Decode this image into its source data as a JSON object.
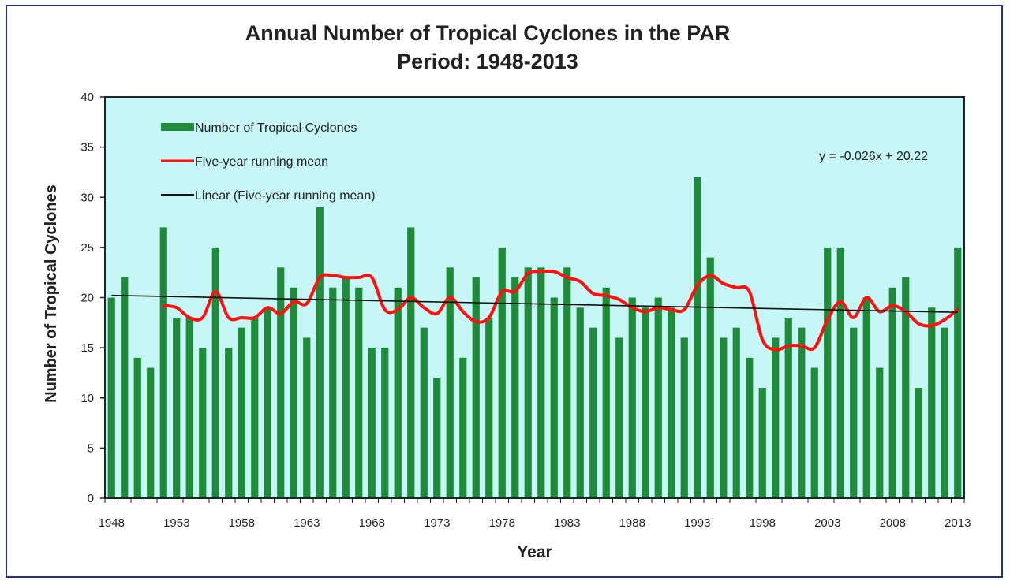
{
  "chart_data": {
    "type": "bar",
    "title": "Annual Number of Tropical Cyclones  in the PAR",
    "subtitle": "Period: 1948-2013",
    "xlabel": "Year",
    "ylabel": "Number of Tropical Cyclones",
    "ylim": [
      0,
      40
    ],
    "yticks": [
      0,
      5,
      10,
      15,
      20,
      25,
      30,
      35,
      40
    ],
    "xtick_labels": [
      "1948",
      "1953",
      "1958",
      "1963",
      "1968",
      "1973",
      "1978",
      "1983",
      "1988",
      "1993",
      "1998",
      "2003",
      "2008",
      "2013"
    ],
    "grid": false,
    "legend_position": "top-left",
    "plot_background": "#c6f6f6",
    "equation": "y = -0.026x + 20.22",
    "x": [
      1948,
      1949,
      1950,
      1951,
      1952,
      1953,
      1954,
      1955,
      1956,
      1957,
      1958,
      1959,
      1960,
      1961,
      1962,
      1963,
      1964,
      1965,
      1966,
      1967,
      1968,
      1969,
      1970,
      1971,
      1972,
      1973,
      1974,
      1975,
      1976,
      1977,
      1978,
      1979,
      1980,
      1981,
      1982,
      1983,
      1984,
      1985,
      1986,
      1987,
      1988,
      1989,
      1990,
      1991,
      1992,
      1993,
      1994,
      1995,
      1996,
      1997,
      1998,
      1999,
      2000,
      2001,
      2002,
      2003,
      2004,
      2005,
      2006,
      2007,
      2008,
      2009,
      2010,
      2011,
      2012,
      2013
    ],
    "series": [
      {
        "name": "Number of Tropical Cyclones",
        "kind": "bar",
        "color": "#1f8b3a",
        "values": [
          20,
          22,
          14,
          13,
          27,
          18,
          18,
          15,
          25,
          15,
          17,
          18,
          19,
          23,
          21,
          16,
          29,
          21,
          22,
          21,
          15,
          15,
          21,
          27,
          17,
          12,
          23,
          14,
          22,
          18,
          25,
          22,
          23,
          23,
          20,
          23,
          19,
          17,
          21,
          16,
          20,
          19,
          20,
          19,
          16,
          32,
          24,
          16,
          17,
          14,
          11,
          16,
          18,
          17,
          13,
          25,
          25,
          17,
          20,
          13,
          21,
          22,
          11,
          19,
          17,
          25
        ]
      },
      {
        "name": "Five-year running mean",
        "kind": "line",
        "color": "#ff1010",
        "values": [
          null,
          null,
          null,
          null,
          19.2,
          19.0,
          18.0,
          18.0,
          20.6,
          18.0,
          18.0,
          18.0,
          19.0,
          18.4,
          19.6,
          19.4,
          22.0,
          22.2,
          22.0,
          22.0,
          22.0,
          18.8,
          18.8,
          20.0,
          19.0,
          18.4,
          20.0,
          18.6,
          17.6,
          18.0,
          20.6,
          20.6,
          22.4,
          22.6,
          22.6,
          22.0,
          21.6,
          20.4,
          20.2,
          19.8,
          19.0,
          18.6,
          19.0,
          18.8,
          18.8,
          21.2,
          22.2,
          21.4,
          21.0,
          20.6,
          15.8,
          14.8,
          15.2,
          15.2,
          15.0,
          17.8,
          19.6,
          18.0,
          20.0,
          18.6,
          19.2,
          18.6,
          17.4,
          17.2,
          17.8,
          18.8
        ]
      },
      {
        "name": "Linear (Five-year running mean)",
        "kind": "trendline",
        "color": "#111111",
        "start_value": 20.22,
        "slope": -0.026
      }
    ]
  }
}
